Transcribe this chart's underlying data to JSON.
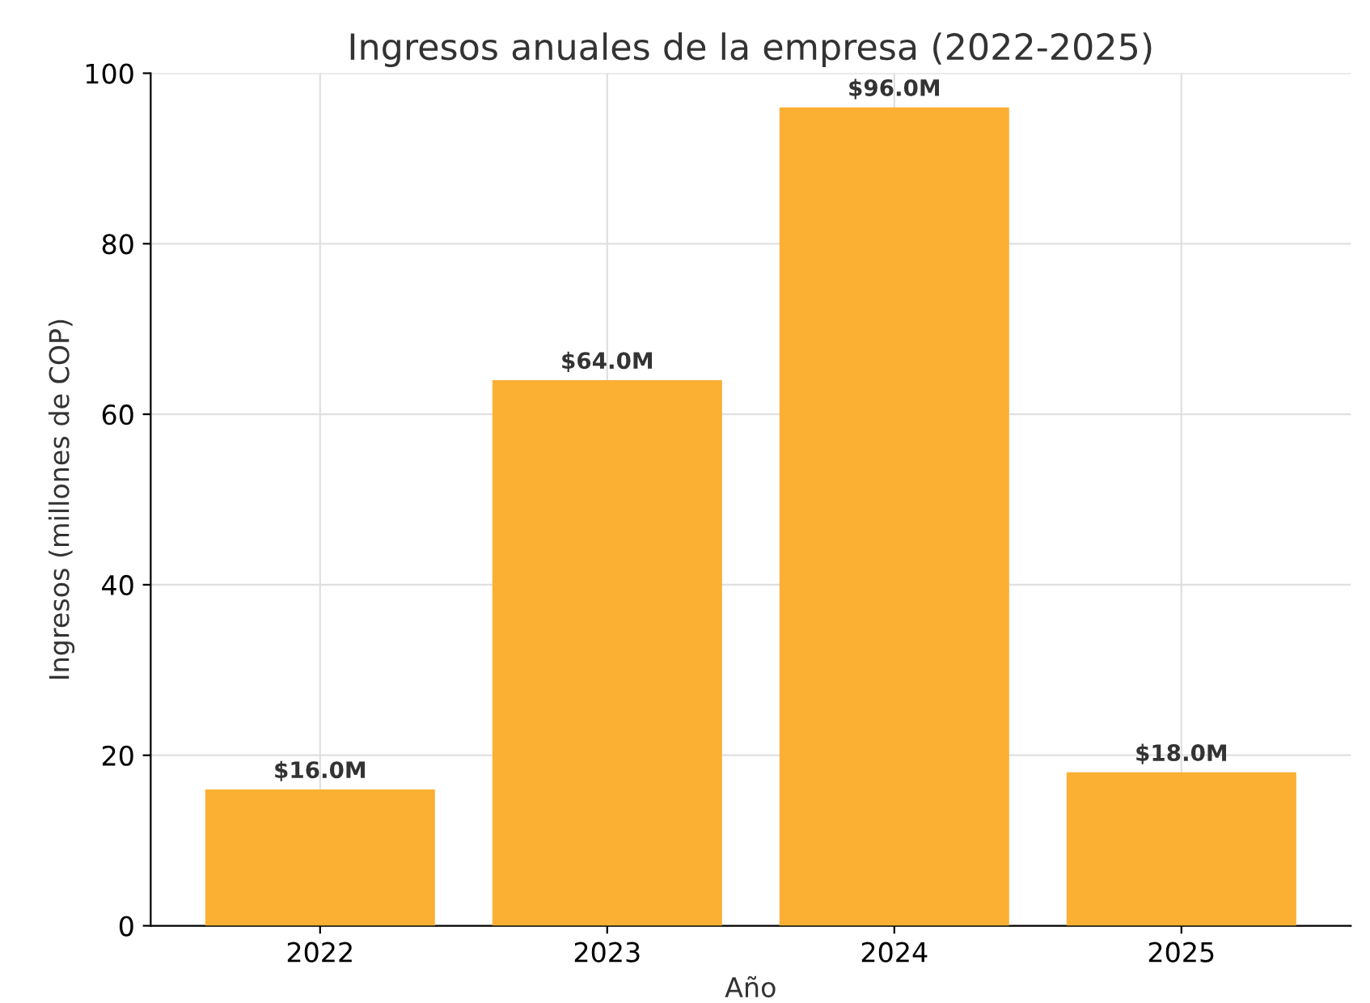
{
  "chart_data": {
    "type": "bar",
    "title": "Ingresos anuales de la empresa (2022-2025)",
    "xlabel": "Año",
    "ylabel": "Ingresos (millones de COP)",
    "categories": [
      "2022",
      "2023",
      "2024",
      "2025"
    ],
    "values": [
      16,
      64,
      96,
      18
    ],
    "value_labels": [
      "$16.0M",
      "$64.0M",
      "$96.0M",
      "$18.0M"
    ],
    "color": "#fbb034",
    "ylim": [
      0,
      100
    ],
    "yticks": [
      0,
      20,
      40,
      60,
      80,
      100
    ],
    "grid": true
  }
}
